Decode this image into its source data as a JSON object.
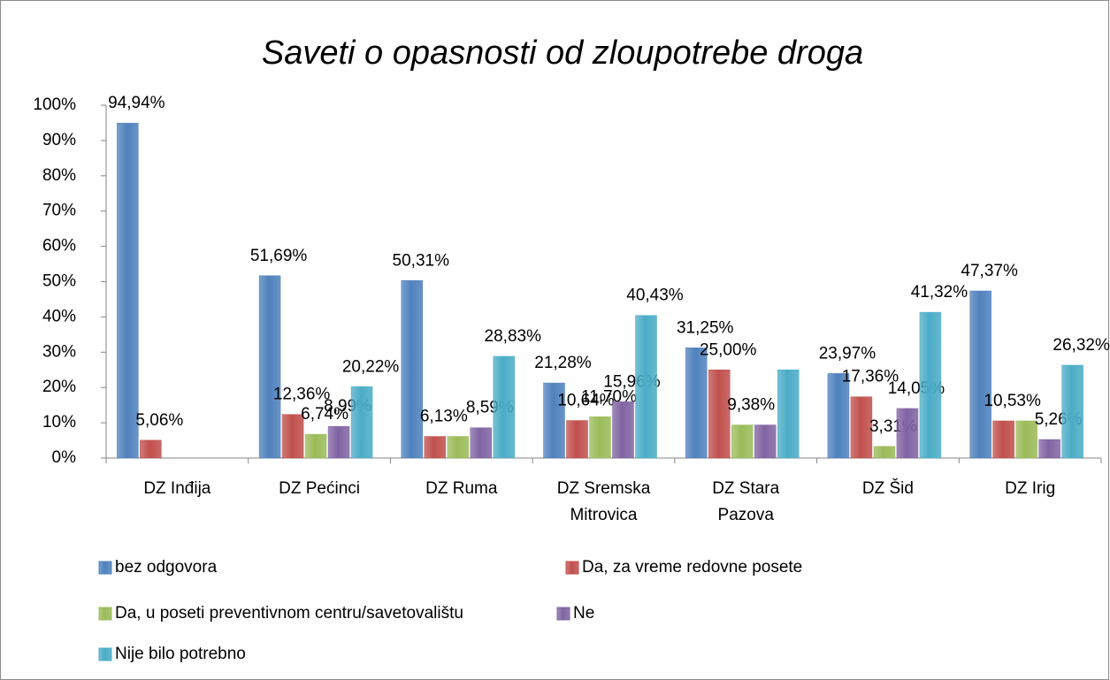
{
  "chart_data": {
    "type": "bar",
    "title": "Saveti o opasnosti od zloupotrebe droga",
    "categories": [
      "DZ Inđija",
      "DZ Pećinci",
      "DZ Ruma",
      "DZ Sremska Mitrovica",
      "DZ Stara Pazova",
      "DZ Šid",
      "DZ Irig"
    ],
    "series": [
      {
        "name": "bez odgovora",
        "color": "#4f81bd",
        "values": [
          94.94,
          51.69,
          50.31,
          21.28,
          31.25,
          23.97,
          47.37
        ],
        "value_labels": [
          "94,94%",
          "51,69%",
          "50,31%",
          "21,28%",
          "31,25%",
          "23,97%",
          "47,37%"
        ]
      },
      {
        "name": "Da, za vreme redovne posete",
        "color": "#c0504d",
        "values": [
          5.06,
          12.36,
          6.13,
          10.64,
          25.0,
          17.36,
          10.53
        ],
        "value_labels": [
          "5,06%",
          "12,36%",
          "6,13%",
          "10,64%",
          "25,00%",
          "17,36%",
          "10,53%"
        ]
      },
      {
        "name": "Da, u poseti preventivnom centru/savetovalištu",
        "color": "#9bbb59",
        "values": [
          null,
          6.74,
          6.13,
          11.7,
          9.38,
          3.31,
          10.53
        ],
        "value_labels": [
          null,
          "6,74%",
          null,
          "11,70%",
          "9,38%",
          "3,31%",
          null
        ]
      },
      {
        "name": "Ne",
        "color": "#8064a2",
        "values": [
          null,
          8.99,
          8.59,
          15.96,
          9.38,
          14.05,
          5.26
        ],
        "value_labels": [
          null,
          "8,99%",
          "8,59%",
          "15,96%",
          null,
          "14,05%",
          "5,26%"
        ]
      },
      {
        "name": "Nije bilo potrebno",
        "color": "#4bacc6",
        "values": [
          null,
          20.22,
          28.83,
          40.43,
          25.0,
          41.32,
          26.32
        ],
        "value_labels": [
          null,
          "20,22%",
          "28,83%",
          "40,43%",
          null,
          "41,32%",
          "26,32%"
        ]
      }
    ],
    "ylim": [
      0,
      100
    ],
    "yticks": [
      {
        "value": 0,
        "label": "0%"
      },
      {
        "value": 10,
        "label": "10%"
      },
      {
        "value": 20,
        "label": "20%"
      },
      {
        "value": 30,
        "label": "30%"
      },
      {
        "value": 40,
        "label": "40%"
      },
      {
        "value": 50,
        "label": "50%"
      },
      {
        "value": 60,
        "label": "60%"
      },
      {
        "value": 70,
        "label": "70%"
      },
      {
        "value": 80,
        "label": "80%"
      },
      {
        "value": 90,
        "label": "90%"
      },
      {
        "value": 100,
        "label": "100%"
      }
    ],
    "grid": false,
    "legend": "bottom"
  }
}
